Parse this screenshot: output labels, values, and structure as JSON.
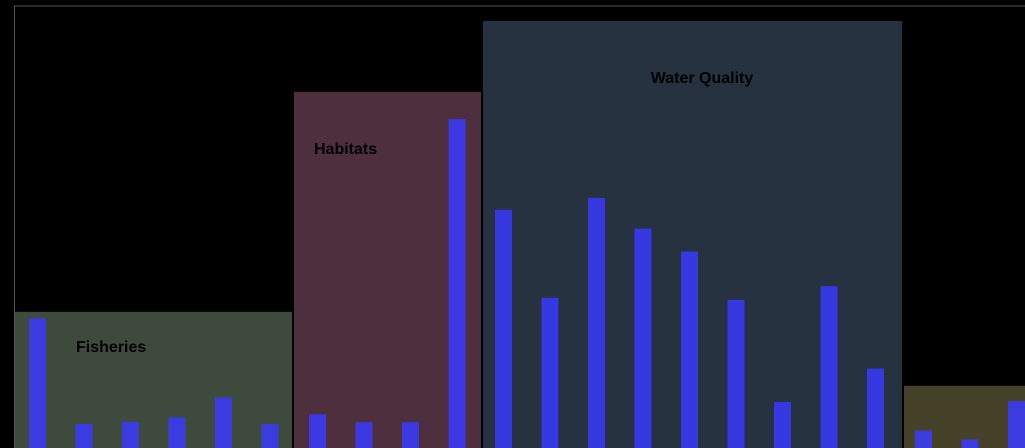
{
  "chart_data": {
    "type": "bar",
    "title": "",
    "xlabel": "",
    "ylabel": "",
    "ylim": [
      0,
      100
    ],
    "grid": false,
    "legend": "none",
    "bar_color": "#3a3aff",
    "background": "#000000",
    "groups": [
      {
        "name": "Fisheries",
        "color": "#3e4a3c",
        "level": 30.5,
        "bars": [
          29,
          5,
          5.5,
          6.5,
          11,
          5
        ]
      },
      {
        "name": "Habitats",
        "color": "#4e2f3e",
        "level": 80.5,
        "bars": [
          7.2,
          5.4,
          5.4,
          74.3
        ]
      },
      {
        "name": "Water Quality",
        "color": "#26323f",
        "level": 96.6,
        "bars": [
          53.7,
          33.7,
          56.4,
          49.4,
          44.2,
          33.2,
          10,
          36.3,
          17.6
        ]
      },
      {
        "name": "",
        "color": "#46422a",
        "level": 13.7,
        "bars": [
          3.5,
          1.5,
          10.2
        ]
      }
    ]
  }
}
